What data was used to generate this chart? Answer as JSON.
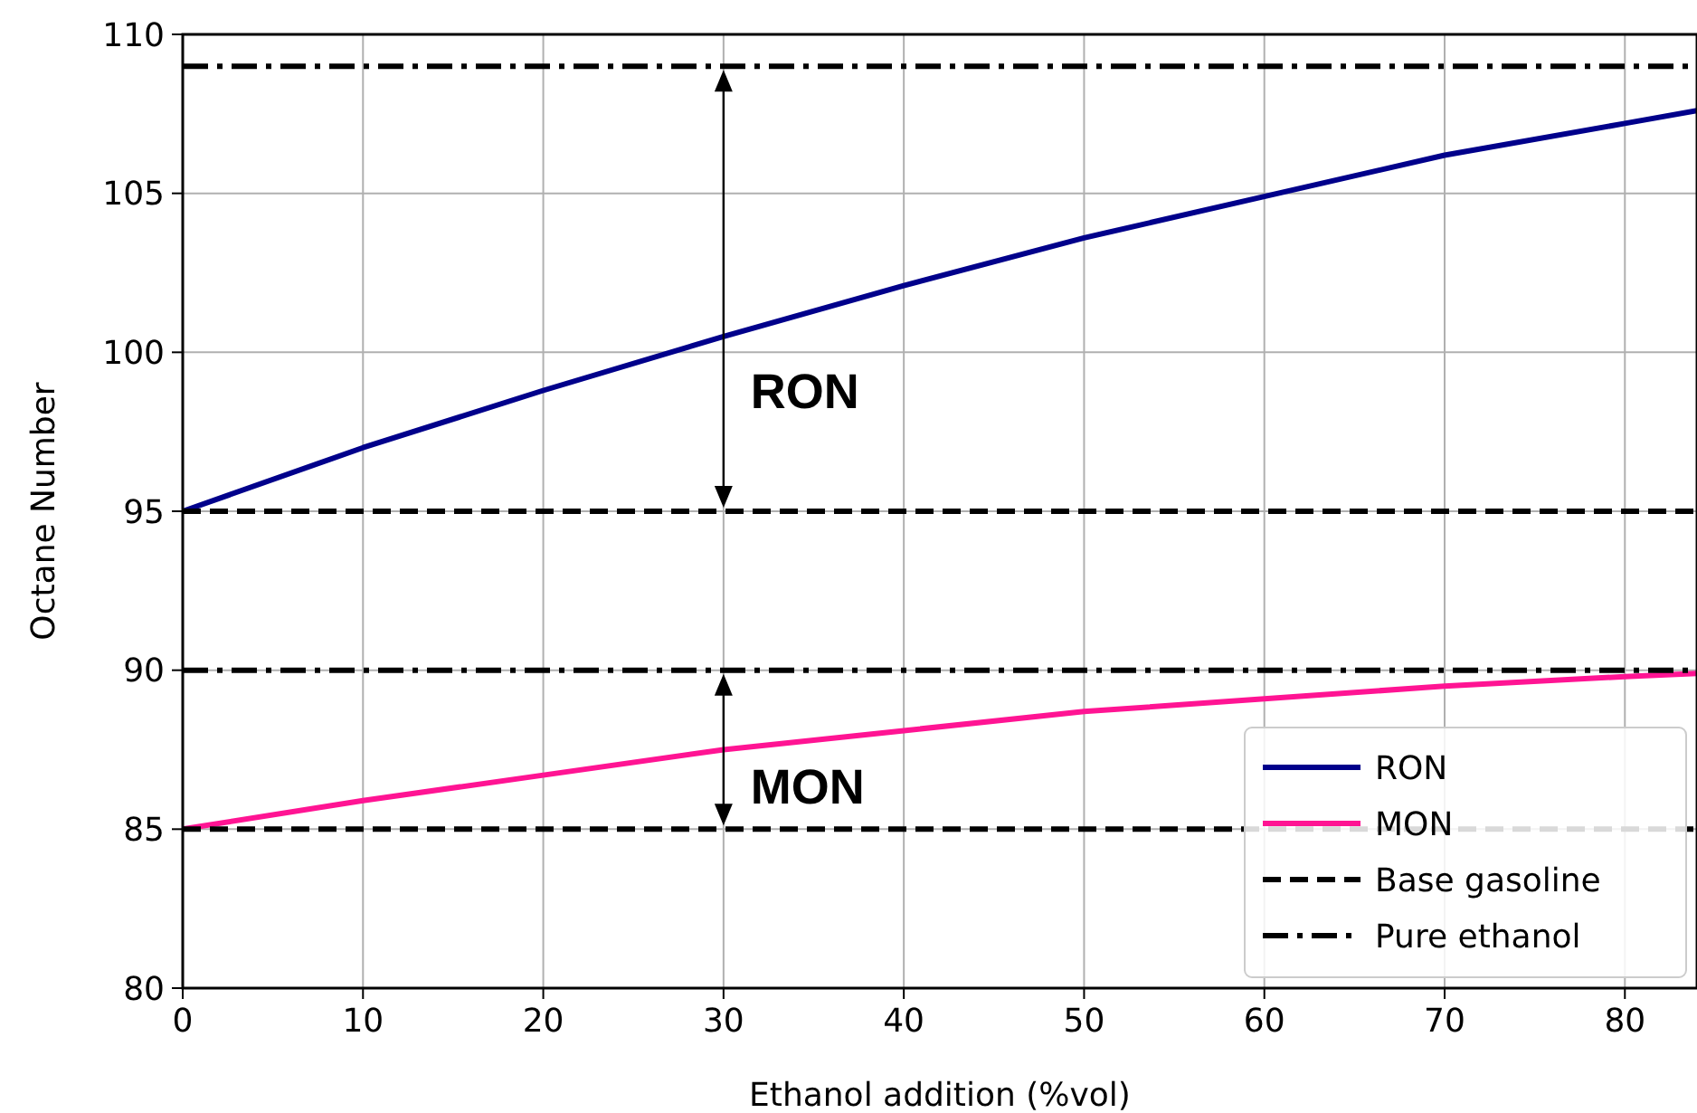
{
  "chart_data": {
    "type": "line",
    "xlabel": "Ethanol addition (%vol)",
    "ylabel": "Octane Number",
    "xlim": [
      0,
      84
    ],
    "ylim": [
      80,
      110
    ],
    "xticks": [
      0,
      10,
      20,
      30,
      40,
      50,
      60,
      70,
      80
    ],
    "yticks": [
      80,
      85,
      90,
      95,
      100,
      105,
      110
    ],
    "grid": true,
    "legend": "bottom right",
    "series": [
      {
        "name": "RON",
        "color": "#00008b",
        "x": [
          0,
          10,
          20,
          30,
          40,
          50,
          60,
          70,
          80,
          84
        ],
        "values": [
          95,
          97,
          98.8,
          100.5,
          102.1,
          103.6,
          104.9,
          106.2,
          107.2,
          107.6
        ]
      },
      {
        "name": "MON",
        "color": "#ff1493",
        "x": [
          0,
          10,
          20,
          30,
          40,
          50,
          60,
          70,
          80,
          84
        ],
        "values": [
          85,
          85.9,
          86.7,
          87.5,
          88.1,
          88.7,
          89.1,
          89.5,
          89.8,
          89.9
        ]
      },
      {
        "name": "Base gasoline",
        "color": "#000000",
        "line_style": "dashed",
        "x": [
          0,
          84
        ],
        "values": [
          95,
          95
        ]
      },
      {
        "color": "#000000",
        "line_style": "dashed",
        "x": [
          0,
          84
        ],
        "values": [
          85,
          85
        ]
      },
      {
        "name": "Pure ethanol",
        "color": "#000000",
        "line_style": "dashdot",
        "x": [
          0,
          84
        ],
        "values": [
          109,
          109
        ]
      },
      {
        "color": "#000000",
        "line_style": "dashdot",
        "x": [
          0,
          84
        ],
        "values": [
          90,
          90
        ]
      }
    ],
    "annotations": [
      "RON",
      "MON"
    ]
  }
}
